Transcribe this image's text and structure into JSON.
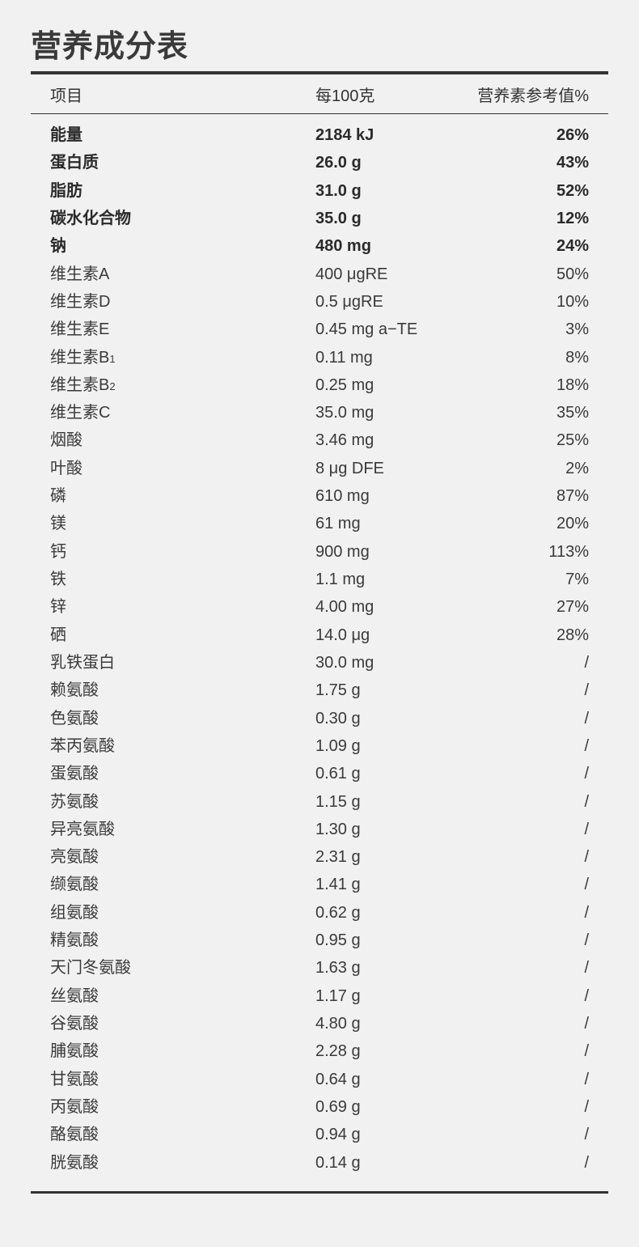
{
  "title": "营养成分表",
  "headers": {
    "item": "项目",
    "per100": "每100克",
    "nrv": "营养素参考值%"
  },
  "rows": [
    {
      "name": "能量",
      "sub": "",
      "amount": "2184 kJ",
      "nrv": "26%",
      "bold": true
    },
    {
      "name": "蛋白质",
      "sub": "",
      "amount": "26.0 g",
      "nrv": "43%",
      "bold": true
    },
    {
      "name": "脂肪",
      "sub": "",
      "amount": "31.0 g",
      "nrv": "52%",
      "bold": true
    },
    {
      "name": "碳水化合物",
      "sub": "",
      "amount": "35.0 g",
      "nrv": "12%",
      "bold": true
    },
    {
      "name": "钠",
      "sub": "",
      "amount": "480 mg",
      "nrv": "24%",
      "bold": true
    },
    {
      "name": "维生素A",
      "sub": "",
      "amount": "400  μgRE",
      "nrv": "50%"
    },
    {
      "name": "维生素D",
      "sub": "",
      "amount": "0.5  μgRE",
      "nrv": "10%"
    },
    {
      "name": "维生素E",
      "sub": "",
      "amount": "0.45 mg a−TE",
      "nrv": "3%"
    },
    {
      "name": "维生素B",
      "sub": "1",
      "amount": "0.11 mg",
      "nrv": "8%"
    },
    {
      "name": "维生素B",
      "sub": "2",
      "amount": "0.25 mg",
      "nrv": "18%"
    },
    {
      "name": "维生素C",
      "sub": "",
      "amount": "35.0 mg",
      "nrv": "35%"
    },
    {
      "name": "烟酸",
      "sub": "",
      "amount": "3.46 mg",
      "nrv": "25%"
    },
    {
      "name": "叶酸",
      "sub": "",
      "amount": "8 μg DFE",
      "nrv": "2%"
    },
    {
      "name": "磷",
      "sub": "",
      "amount": "610 mg",
      "nrv": "87%"
    },
    {
      "name": "镁",
      "sub": "",
      "amount": "61 mg",
      "nrv": "20%"
    },
    {
      "name": "钙",
      "sub": "",
      "amount": "900 mg",
      "nrv": "113%"
    },
    {
      "name": "铁",
      "sub": "",
      "amount": "1.1 mg",
      "nrv": "7%"
    },
    {
      "name": "锌",
      "sub": "",
      "amount": "4.00 mg",
      "nrv": "27%"
    },
    {
      "name": "硒",
      "sub": "",
      "amount": "14.0  μg",
      "nrv": "28%"
    },
    {
      "name": "乳铁蛋白",
      "sub": "",
      "amount": "30.0 mg",
      "nrv": "/"
    },
    {
      "name": "赖氨酸",
      "sub": "",
      "amount": "1.75 g",
      "nrv": "/"
    },
    {
      "name": "色氨酸",
      "sub": "",
      "amount": "0.30 g",
      "nrv": "/"
    },
    {
      "name": "苯丙氨酸",
      "sub": "",
      "amount": "1.09 g",
      "nrv": "/"
    },
    {
      "name": "蛋氨酸",
      "sub": "",
      "amount": "0.61 g",
      "nrv": "/"
    },
    {
      "name": "苏氨酸",
      "sub": "",
      "amount": "1.15 g",
      "nrv": "/"
    },
    {
      "name": "异亮氨酸",
      "sub": "",
      "amount": "1.30 g",
      "nrv": "/"
    },
    {
      "name": "亮氨酸",
      "sub": "",
      "amount": "2.31 g",
      "nrv": "/"
    },
    {
      "name": "缬氨酸",
      "sub": "",
      "amount": "1.41 g",
      "nrv": "/"
    },
    {
      "name": "组氨酸",
      "sub": "",
      "amount": "0.62 g",
      "nrv": "/"
    },
    {
      "name": "精氨酸",
      "sub": "",
      "amount": "0.95 g",
      "nrv": "/"
    },
    {
      "name": "天门冬氨酸",
      "sub": "",
      "amount": "1.63 g",
      "nrv": "/"
    },
    {
      "name": "丝氨酸",
      "sub": "",
      "amount": "1.17 g",
      "nrv": "/"
    },
    {
      "name": "谷氨酸",
      "sub": "",
      "amount": "4.80 g",
      "nrv": "/"
    },
    {
      "name": "脯氨酸",
      "sub": "",
      "amount": "2.28 g",
      "nrv": "/"
    },
    {
      "name": "甘氨酸",
      "sub": "",
      "amount": "0.64 g",
      "nrv": "/"
    },
    {
      "name": "丙氨酸",
      "sub": "",
      "amount": "0.69 g",
      "nrv": "/"
    },
    {
      "name": "酪氨酸",
      "sub": "",
      "amount": "0.94 g",
      "nrv": "/"
    },
    {
      "name": "胱氨酸",
      "sub": "",
      "amount": "0.14 g",
      "nrv": "/"
    }
  ]
}
